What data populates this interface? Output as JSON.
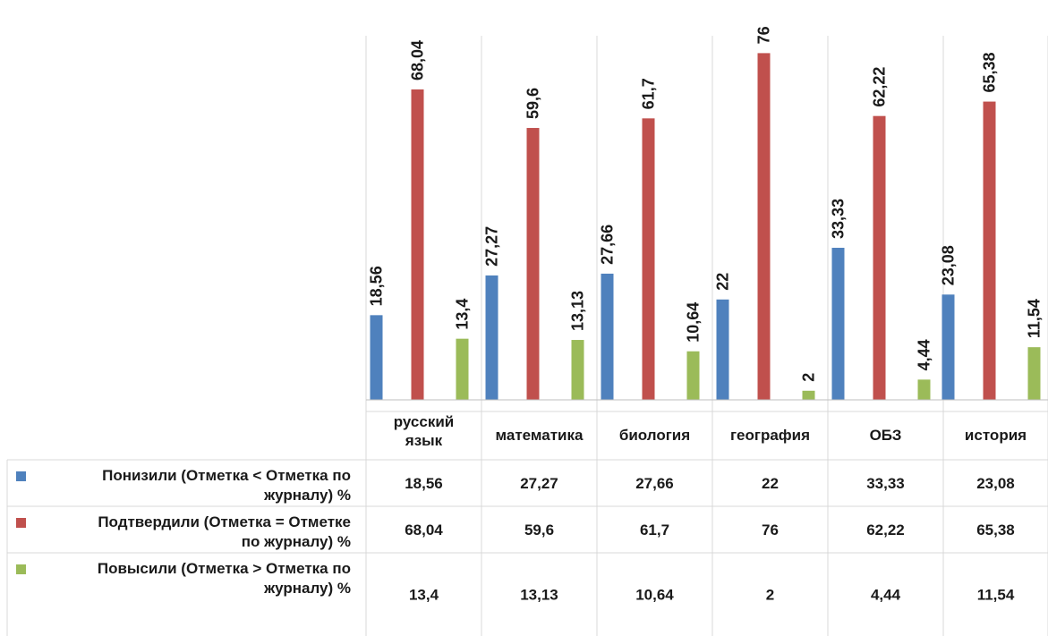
{
  "chart_data": {
    "type": "bar",
    "categories": [
      "русский язык",
      "математика",
      "биология",
      "география",
      "ОБЗ",
      "история"
    ],
    "series": [
      {
        "name": "Понизили (Отметка < Отметка по журналу) %",
        "values": [
          18.56,
          27.27,
          27.66,
          22,
          33.33,
          23.08
        ],
        "labels": [
          "18,56",
          "27,27",
          "27,66",
          "22",
          "33,33",
          "23,08"
        ],
        "color": "#4F81BD"
      },
      {
        "name": "Подтвердили (Отметка = Отметке по журналу) %",
        "values": [
          68.04,
          59.6,
          61.7,
          76,
          62.22,
          65.38
        ],
        "labels": [
          "68,04",
          "59,6",
          "61,7",
          "76",
          "62,22",
          "65,38"
        ],
        "color": "#C0504D"
      },
      {
        "name": "Повысили (Отметка > Отметка по журналу) %",
        "values": [
          13.4,
          13.13,
          10.64,
          2,
          4.44,
          11.54
        ],
        "labels": [
          "13,4",
          "13,13",
          "10,64",
          "2",
          "4,44",
          "11,54"
        ],
        "color": "#9BBB59"
      }
    ],
    "ylim": [
      0,
      80
    ],
    "grid": false,
    "legend_placement": "data table",
    "data_labels": "rotated vertical above bars"
  }
}
